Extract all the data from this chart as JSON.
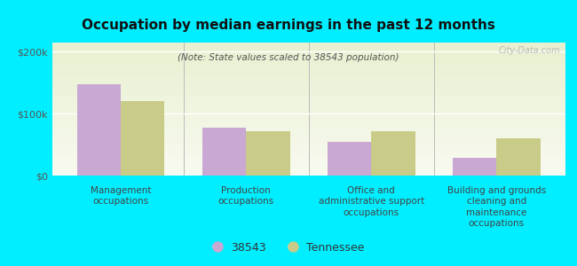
{
  "title": "Occupation by median earnings in the past 12 months",
  "subtitle": "(Note: State values scaled to 38543 population)",
  "categories": [
    "Management\noccupations",
    "Production\noccupations",
    "Office and\nadministrative support\noccupations",
    "Building and grounds\ncleaning and\nmaintenance\noccupations"
  ],
  "values_38543": [
    148000,
    78000,
    55000,
    28000
  ],
  "values_tn": [
    120000,
    72000,
    72000,
    60000
  ],
  "color_38543": "#c9a8d4",
  "color_tn": "#c8cc88",
  "background_outer": "#00eeff",
  "background_plot_top": "#e8f0d0",
  "background_plot_bottom": "#f8faf0",
  "yticks": [
    0,
    100000,
    200000
  ],
  "ytick_labels": [
    "$0",
    "$100k",
    "$200k"
  ],
  "ylim": [
    0,
    215000
  ],
  "watermark": "City-Data.com",
  "legend_38543": "38543",
  "legend_tn": "Tennessee",
  "bar_width": 0.35
}
